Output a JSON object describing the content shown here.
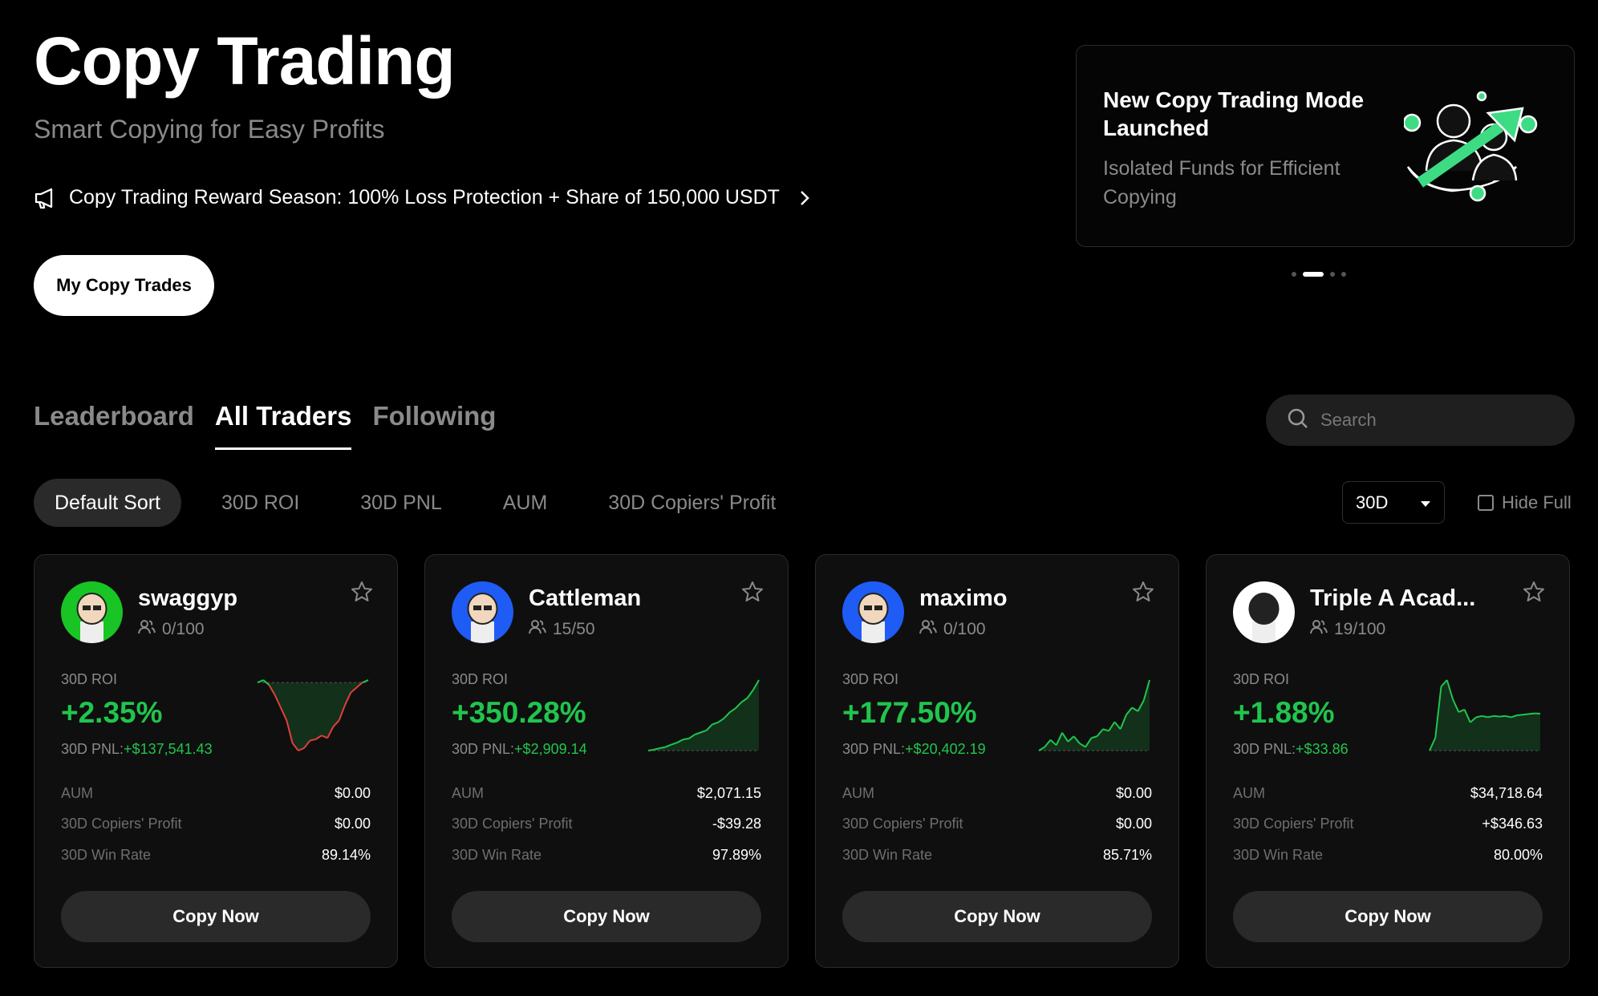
{
  "hero": {
    "title": "Copy Trading",
    "subtitle": "Smart Copying for Easy Profits",
    "promo_text": "Copy Trading Reward Season: 100% Loss Protection + Share of 150,000 USDT",
    "my_copy_trades": "My Copy Trades"
  },
  "banner": {
    "title": "New Copy Trading Mode Launched",
    "text": "Isolated Funds for Efficient Copying",
    "slides": 4,
    "active_slide": 2
  },
  "tabs": [
    {
      "label": "Leaderboard"
    },
    {
      "label": "All Traders"
    },
    {
      "label": "Following"
    }
  ],
  "active_tab": "All Traders",
  "search": {
    "placeholder": "Search"
  },
  "sorts": [
    {
      "label": "Default Sort"
    },
    {
      "label": "30D ROI"
    },
    {
      "label": "30D PNL"
    },
    {
      "label": "AUM"
    },
    {
      "label": "30D Copiers' Profit"
    }
  ],
  "period": {
    "value": "30D"
  },
  "hide_full": {
    "label": "Hide Full",
    "checked": false
  },
  "labels": {
    "roi": "30D ROI",
    "pnl": "30D PNL:",
    "aum": "AUM",
    "copiers_profit": "30D Copiers' Profit",
    "win_rate": "30D Win Rate",
    "copy_now": "Copy Now"
  },
  "colors": {
    "positive": "#20c54d",
    "negative": "#e0413a",
    "accent": "#20c54d"
  },
  "traders": [
    {
      "name": "swaggyp",
      "copiers": "0/100",
      "roi": "+2.35%",
      "pnl": "+$137,541.43",
      "aum": "$0.00",
      "copiers_profit": "$0.00",
      "win_rate": "89.14%",
      "avatar_bg": "#19c524",
      "avatar_icon": "trader-avatar-icon",
      "spark_values": [
        40,
        42,
        38,
        30,
        20,
        10,
        -8,
        -14,
        -12,
        -6,
        -5,
        -2,
        -4,
        5,
        10,
        22,
        32,
        36,
        40,
        42
      ]
    },
    {
      "name": "Cattleman",
      "copiers": "15/50",
      "roi": "+350.28%",
      "pnl": "+$2,909.14",
      "aum": "$2,071.15",
      "copiers_profit": "-$39.28",
      "win_rate": "97.89%",
      "avatar_bg": "#1f5cf5",
      "avatar_icon": "trader-avatar-icon",
      "spark_values": [
        0,
        5,
        12,
        18,
        30,
        40,
        55,
        60,
        80,
        90,
        100,
        130,
        140,
        160,
        190,
        210,
        240,
        260,
        300,
        350
      ]
    },
    {
      "name": "maximo",
      "copiers": "0/100",
      "roi": "+177.50%",
      "pnl": "+$20,402.19",
      "aum": "$0.00",
      "copiers_profit": "$0.00",
      "win_rate": "85.71%",
      "avatar_bg": "#1f5cf5",
      "avatar_icon": "trader-avatar-icon",
      "spark_values": [
        -20,
        -10,
        10,
        -5,
        30,
        5,
        20,
        0,
        -10,
        15,
        20,
        40,
        35,
        60,
        40,
        80,
        100,
        90,
        120,
        177
      ]
    },
    {
      "name": "Triple A Acad...",
      "copiers": "19/100",
      "roi": "+1.88%",
      "pnl": "+$33.86",
      "aum": "$34,718.64",
      "copiers_profit": "+$346.63",
      "win_rate": "80.00%",
      "avatar_bg": "#ffffff",
      "avatar_icon": "trader-avatar-icon",
      "spark_values": [
        -1,
        0,
        4,
        4.5,
        3,
        2,
        2.2,
        1.2,
        1.6,
        1.7,
        1.6,
        1.7,
        1.65,
        1.7,
        1.6,
        1.75,
        1.8,
        1.85,
        1.9,
        1.88
      ]
    }
  ]
}
